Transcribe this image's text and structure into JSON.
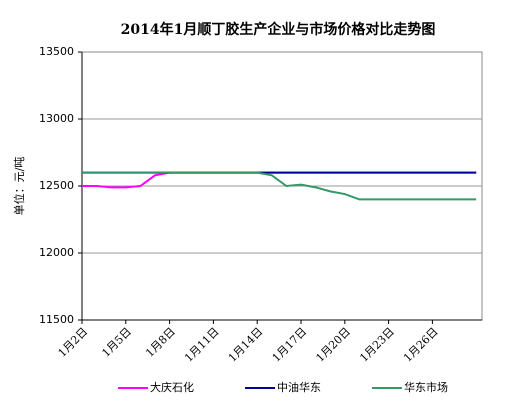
{
  "chart_data": {
    "type": "line",
    "title": "2014年1月顺丁胶生产企业与市场价格对比走势图",
    "y_label": "单位：元/吨",
    "categories": [
      "1月2日",
      null,
      null,
      "1月5日",
      null,
      null,
      "1月8日",
      null,
      null,
      "1月11日",
      null,
      null,
      "1月14日",
      null,
      null,
      "1月17日",
      null,
      null,
      "1月20日",
      null,
      null,
      "1月23日",
      null,
      null,
      "1月26日",
      null,
      null,
      null
    ],
    "series": [
      {
        "name": "大庆石化",
        "color": "#ff00ff",
        "values": [
          12500,
          12500,
          12490,
          12490,
          12500,
          12580,
          12600,
          12600,
          12600,
          12600,
          12600,
          12600,
          12600,
          12600,
          12600,
          12600,
          12600,
          12600,
          12600,
          12600,
          12600,
          12600,
          12600,
          12600,
          12600,
          12600,
          12600,
          12600
        ]
      },
      {
        "name": "中油华东",
        "color": "#000099",
        "values": [
          12600,
          12600,
          12600,
          12600,
          12600,
          12600,
          12600,
          12600,
          12600,
          12600,
          12600,
          12600,
          12600,
          12600,
          12600,
          12600,
          12600,
          12600,
          12600,
          12600,
          12600,
          12600,
          12600,
          12600,
          12600,
          12600,
          12600,
          12600
        ]
      },
      {
        "name": "华东市场",
        "color": "#339966",
        "values": [
          12600,
          12600,
          12600,
          12600,
          12600,
          12600,
          12600,
          12600,
          12600,
          12600,
          12600,
          12600,
          12600,
          12580,
          12500,
          12510,
          12490,
          12460,
          12440,
          12400,
          12400,
          12400,
          12400,
          12400,
          12400,
          12400,
          12400,
          12400
        ]
      }
    ],
    "ylim": [
      11500,
      13500
    ],
    "yticks": [
      11500,
      12000,
      12500,
      13000,
      13500
    ],
    "grid": true,
    "legend": "bottom"
  }
}
